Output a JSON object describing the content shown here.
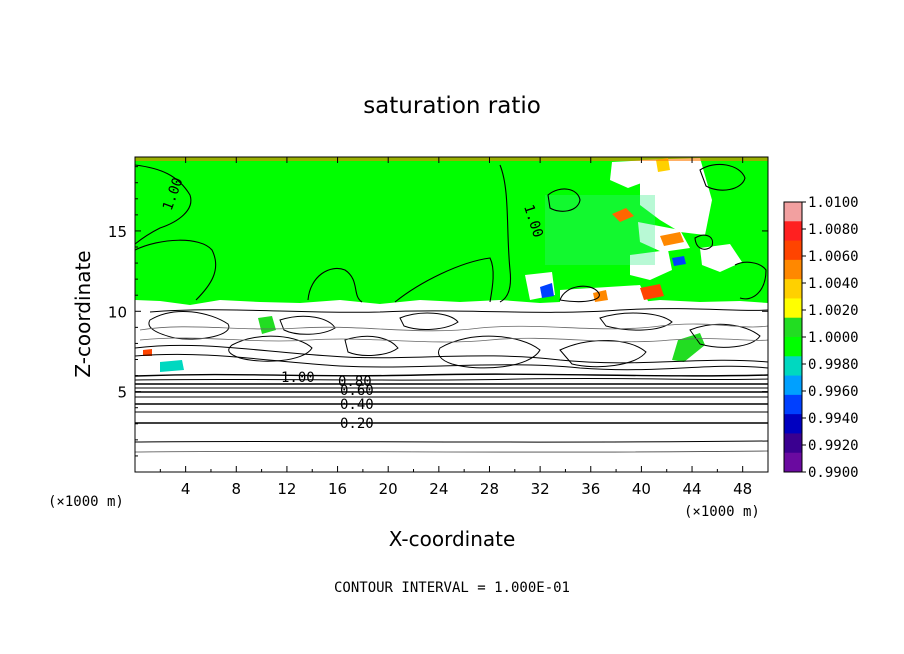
{
  "chart_data": {
    "type": "heatmap",
    "title": "saturation ratio",
    "xlabel": "X-coordinate",
    "ylabel": "Z-coordinate",
    "x_unit": "(×1000 m)",
    "z_unit": "(×1000 m)",
    "footer": "CONTOUR INTERVAL = 1.000E-01",
    "x_ticks": [
      "4",
      "8",
      "12",
      "16",
      "20",
      "24",
      "28",
      "32",
      "36",
      "40",
      "44",
      "48"
    ],
    "y_ticks": [
      "5",
      "10",
      "15"
    ],
    "xlim": [
      0,
      50
    ],
    "ylim": [
      0,
      19.6
    ],
    "grid": false,
    "colorbar": {
      "labels": [
        "1.0100",
        "1.0080",
        "1.0060",
        "1.0040",
        "1.0020",
        "1.0000",
        "0.9980",
        "0.9960",
        "0.9940",
        "0.9920",
        "0.9900"
      ],
      "colors": [
        "#f2a0a0",
        "#ff2020",
        "#ff4400",
        "#ff8800",
        "#ffd000",
        "#ffff00",
        "#22dd22",
        "#00ff00",
        "#00d8c0",
        "#00a0ff",
        "#0040ff",
        "#0000c0",
        "#3a0090",
        "#6a0aa0"
      ],
      "mid_color": "#00ff00"
    },
    "contour_labels": [
      {
        "text": "1.00",
        "x": 15.0,
        "z": 6.0
      },
      {
        "text": "0.80",
        "x": 16.2,
        "z": 5.7
      },
      {
        "text": "0.60",
        "x": 16.4,
        "z": 5.4
      },
      {
        "text": "0.40",
        "x": 16.3,
        "z": 4.4
      },
      {
        "text": "0.20",
        "x": 16.3,
        "z": 3.0
      },
      {
        "text": "1.00",
        "x": 2.3,
        "z": 17.5
      },
      {
        "text": "1.00",
        "x": 30.7,
        "z": 16.0
      }
    ],
    "layers": {
      "upper_region_value": "~1.00 (green, near saturation)",
      "cloud_top_z": 10.5,
      "lower_region": "unsaturated (white), contoured 0.10-1.00"
    }
  }
}
